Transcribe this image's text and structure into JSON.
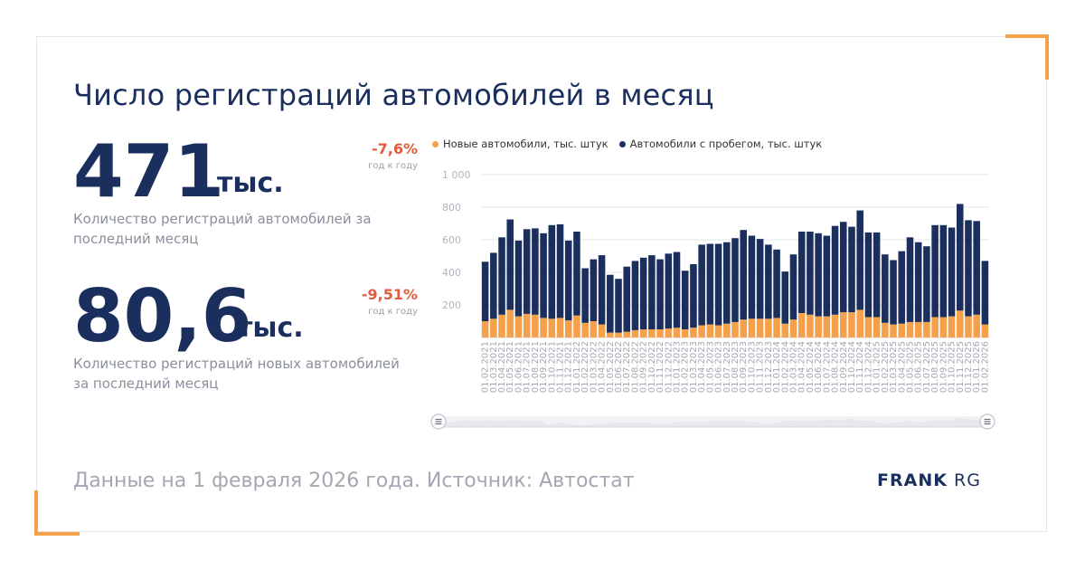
{
  "title": "Число регистраций автомобилей в месяц",
  "kpi1": {
    "value": "471",
    "unit": "тыс.",
    "description": "Количество регистраций автомобилей за последний месяц",
    "change": "-7,6%",
    "change_label": "год к году"
  },
  "kpi2": {
    "value": "80,6",
    "unit": "тыс.",
    "description": "Количество регистраций новых автомобилей за последний месяц",
    "change": "-9,51%",
    "change_label": "год к году"
  },
  "footer": "Данные на 1 февраля 2026 года. Источник: Автостат",
  "brand": {
    "main": "FRANK",
    "sub": "RG"
  },
  "colors": {
    "new": "#f5a04a",
    "used": "#1b2f5e",
    "accent": "#e35b3c"
  },
  "chart_data": {
    "type": "bar",
    "stacked": true,
    "ylim": [
      0,
      1000
    ],
    "yticks": [
      "200",
      "400",
      "600",
      "800",
      "1 000"
    ],
    "legend_position": "top",
    "grid": true,
    "categories": [
      "01.02.2021",
      "01.03.2021",
      "01.04.2021",
      "01.05.2021",
      "01.06.2021",
      "01.07.2021",
      "01.08.2021",
      "01.09.2021",
      "01.10.2021",
      "01.11.2021",
      "01.12.2021",
      "01.01.2022",
      "01.02.2022",
      "01.03.2022",
      "01.04.2022",
      "01.05.2022",
      "01.06.2022",
      "01.07.2022",
      "01.08.2022",
      "01.09.2022",
      "01.10.2022",
      "01.11.2022",
      "01.12.2022",
      "01.01.2023",
      "01.02.2023",
      "01.03.2023",
      "01.04.2023",
      "01.05.2023",
      "01.06.2023",
      "01.07.2023",
      "01.08.2023",
      "01.09.2023",
      "01.10.2023",
      "01.11.2023",
      "01.12.2023",
      "01.01.2024",
      "01.02.2024",
      "01.03.2024",
      "01.04.2024",
      "01.05.2024",
      "01.06.2024",
      "01.07.2024",
      "01.08.2024",
      "01.09.2024",
      "01.10.2024",
      "01.11.2024",
      "01.12.2024",
      "01.01.2025",
      "01.02.2025",
      "01.03.2025",
      "01.04.2025",
      "01.05.2025",
      "01.06.2025",
      "01.07.2025",
      "01.08.2025",
      "01.09.2025",
      "01.10.2025",
      "01.11.2025",
      "01.12.2025",
      "01.01.2026",
      "01.02.2026"
    ],
    "series": [
      {
        "name": "Новые автомобили, тыс. штук",
        "values": [
          100,
          115,
          140,
          170,
          130,
          145,
          140,
          120,
          115,
          120,
          105,
          135,
          90,
          100,
          80,
          30,
          30,
          35,
          45,
          50,
          50,
          50,
          55,
          60,
          50,
          60,
          75,
          80,
          75,
          85,
          95,
          110,
          115,
          115,
          115,
          120,
          85,
          110,
          150,
          140,
          130,
          130,
          140,
          155,
          155,
          170,
          125,
          125,
          90,
          80,
          85,
          95,
          95,
          95,
          125,
          125,
          130,
          165,
          130,
          140,
          80
        ]
      },
      {
        "name": "Автомобили с пробегом, тыс. штук",
        "values": [
          365,
          405,
          475,
          555,
          465,
          520,
          530,
          520,
          575,
          575,
          490,
          515,
          335,
          380,
          425,
          355,
          330,
          400,
          425,
          440,
          455,
          430,
          460,
          465,
          360,
          390,
          495,
          495,
          500,
          500,
          515,
          550,
          510,
          490,
          455,
          420,
          320,
          400,
          500,
          510,
          510,
          495,
          545,
          555,
          525,
          610,
          520,
          520,
          420,
          395,
          445,
          520,
          490,
          465,
          565,
          565,
          545,
          655,
          590,
          575,
          390
        ]
      }
    ]
  }
}
